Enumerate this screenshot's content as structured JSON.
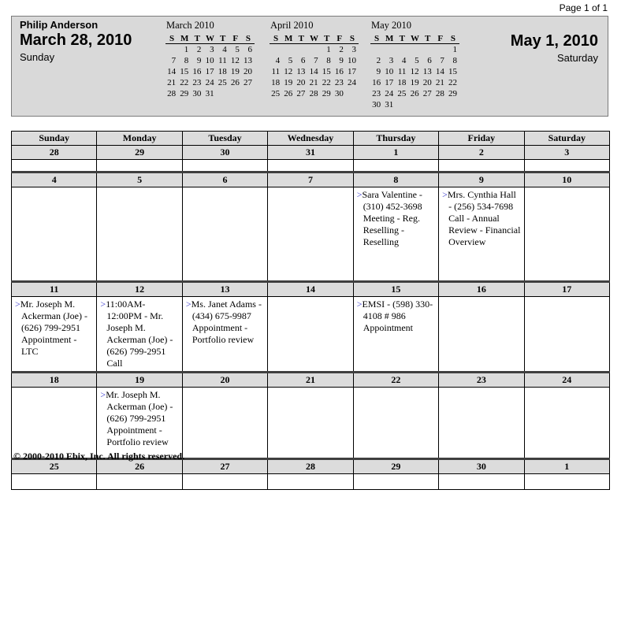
{
  "page": {
    "indicator": "Page 1 of 1",
    "footer": "© 2000-2010 Ebix, Inc. All rights reserved."
  },
  "header": {
    "owner": "Philip Anderson",
    "range_start": {
      "date": "March 28, 2010",
      "weekday": "Sunday"
    },
    "range_end": {
      "date": "May 1, 2010",
      "weekday": "Saturday"
    },
    "mini_calendars": [
      {
        "title": "March 2010",
        "day_letters": [
          "S",
          "M",
          "T",
          "W",
          "T",
          "F",
          "S"
        ],
        "weeks": [
          [
            "",
            "1",
            "2",
            "3",
            "4",
            "5",
            "6"
          ],
          [
            "7",
            "8",
            "9",
            "10",
            "11",
            "12",
            "13"
          ],
          [
            "14",
            "15",
            "16",
            "17",
            "18",
            "19",
            "20"
          ],
          [
            "21",
            "22",
            "23",
            "24",
            "25",
            "26",
            "27"
          ],
          [
            "28",
            "29",
            "30",
            "31",
            "",
            "",
            ""
          ]
        ]
      },
      {
        "title": "April 2010",
        "day_letters": [
          "S",
          "M",
          "T",
          "W",
          "T",
          "F",
          "S"
        ],
        "weeks": [
          [
            "",
            "",
            "",
            "",
            "1",
            "2",
            "3"
          ],
          [
            "4",
            "5",
            "6",
            "7",
            "8",
            "9",
            "10"
          ],
          [
            "11",
            "12",
            "13",
            "14",
            "15",
            "16",
            "17"
          ],
          [
            "18",
            "19",
            "20",
            "21",
            "22",
            "23",
            "24"
          ],
          [
            "25",
            "26",
            "27",
            "28",
            "29",
            "30",
            ""
          ]
        ]
      },
      {
        "title": "May 2010",
        "day_letters": [
          "S",
          "M",
          "T",
          "W",
          "T",
          "F",
          "S"
        ],
        "weeks": [
          [
            "",
            "",
            "",
            "",
            "",
            "",
            "1"
          ],
          [
            "2",
            "3",
            "4",
            "5",
            "6",
            "7",
            "8"
          ],
          [
            "9",
            "10",
            "11",
            "12",
            "13",
            "14",
            "15"
          ],
          [
            "16",
            "17",
            "18",
            "19",
            "20",
            "21",
            "22"
          ],
          [
            "23",
            "24",
            "25",
            "26",
            "27",
            "28",
            "29"
          ],
          [
            "30",
            "31",
            "",
            "",
            "",
            "",
            ""
          ]
        ]
      }
    ]
  },
  "calendar": {
    "day_headers": [
      "Sunday",
      "Monday",
      "Tuesday",
      "Wednesday",
      "Thursday",
      "Friday",
      "Saturday"
    ],
    "weeks": [
      {
        "dates": [
          "28",
          "29",
          "30",
          "31",
          "1",
          "2",
          "3"
        ],
        "events": [
          null,
          null,
          null,
          null,
          null,
          null,
          null
        ]
      },
      {
        "dates": [
          "4",
          "5",
          "6",
          "7",
          "8",
          "9",
          "10"
        ],
        "events": [
          null,
          null,
          null,
          null,
          {
            "marker": ">",
            "text": "Sara Valentine - (310) 452-3698 Meeting - Reg. Reselling - Reselling"
          },
          {
            "marker": ">",
            "text": "Mrs. Cynthia Hall - (256) 534-7698 Call - Annual Review - Financial Overview"
          },
          null
        ]
      },
      {
        "dates": [
          "11",
          "12",
          "13",
          "14",
          "15",
          "16",
          "17"
        ],
        "events": [
          {
            "marker": ">",
            "text": "Mr. Joseph M. Ackerman (Joe) - (626) 799-2951 Appointment - LTC"
          },
          {
            "marker": ">",
            "text": "11:00AM-12:00PM - Mr. Joseph M. Ackerman (Joe) - (626) 799-2951 Call"
          },
          {
            "marker": ">",
            "text": "Ms. Janet Adams - (434) 675-9987 Appointment - Portfolio review"
          },
          null,
          {
            "marker": ">",
            "text": "EMSI - (598) 330-4108 # 986 Appointment"
          },
          null,
          null
        ]
      },
      {
        "dates": [
          "18",
          "19",
          "20",
          "21",
          "22",
          "23",
          "24"
        ],
        "events": [
          null,
          {
            "marker": ">",
            "text": "Mr. Joseph M. Ackerman (Joe) - (626) 799-2951 Appointment - Portfolio review"
          },
          null,
          null,
          null,
          null,
          null
        ]
      },
      {
        "dates": [
          "25",
          "26",
          "27",
          "28",
          "29",
          "30",
          "1"
        ],
        "events": [
          null,
          null,
          null,
          null,
          null,
          null,
          null
        ]
      }
    ]
  },
  "colors": {
    "banner_shade": "#d9d9d9",
    "row_shade": "#dcdcdc",
    "appointment_arrow": "#3333cc"
  }
}
